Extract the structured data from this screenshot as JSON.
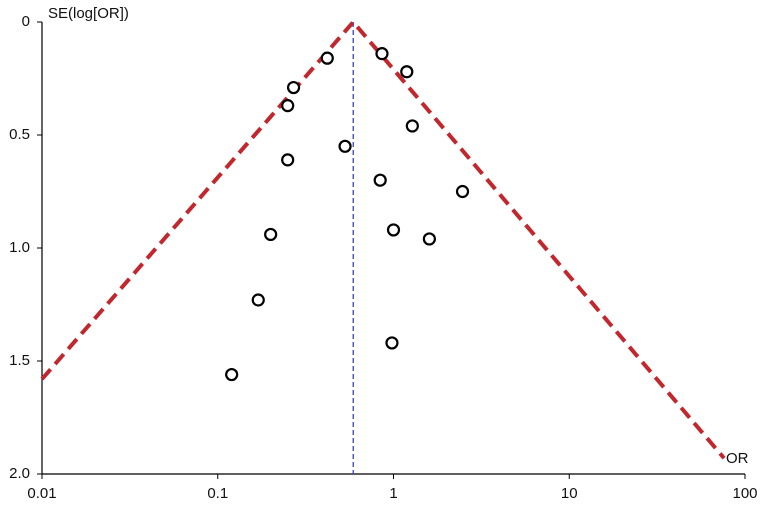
{
  "chart_data": {
    "type": "scatter",
    "y_label": "SE(log[OR])",
    "x_label": "OR",
    "x": [
      0.42,
      0.86,
      1.19,
      0.27,
      0.25,
      1.28,
      0.53,
      0.25,
      0.84,
      2.47,
      0.2,
      1.0,
      1.6,
      0.17,
      0.98,
      0.12
    ],
    "values": [
      0.16,
      0.14,
      0.22,
      0.29,
      0.37,
      0.46,
      0.55,
      0.61,
      0.7,
      0.75,
      0.94,
      0.92,
      0.96,
      1.23,
      1.42,
      1.56
    ],
    "marker_color": "#000000",
    "xscale": "log",
    "xlim": [
      0.01,
      100
    ],
    "xticks": [
      0.01,
      0.1,
      1,
      10,
      100
    ],
    "ylim": [
      0,
      2
    ],
    "y_inverted": true,
    "yticks": [
      0,
      0.5,
      {
        "value": 1,
        "label": "1.0"
      },
      1.5,
      {
        "value": 2,
        "label": "2.0"
      }
    ],
    "funnel": {
      "x": [
        0.01,
        0.59,
        76
      ],
      "values": [
        1.58,
        0,
        1.93
      ],
      "color": "#c1272d"
    },
    "pooled_or": 0.59,
    "pooled_color": "#3344cc"
  }
}
